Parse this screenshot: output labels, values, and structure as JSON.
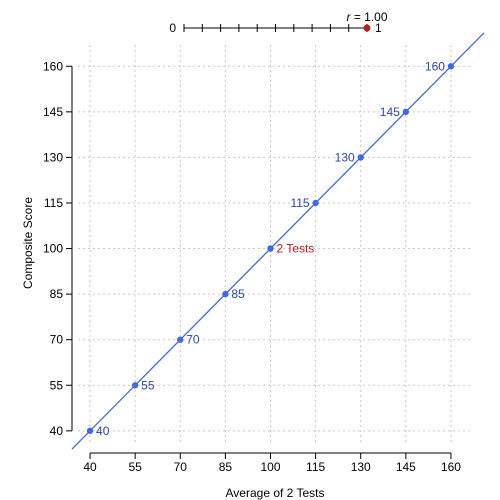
{
  "chart_data": {
    "type": "scatter",
    "xlabel": "Average of 2 Tests",
    "ylabel": "Composite Score",
    "xlim": [
      36,
      167
    ],
    "ylim": [
      36,
      167
    ],
    "x_ticks": [
      40,
      55,
      70,
      85,
      100,
      115,
      130,
      145,
      160
    ],
    "y_ticks": [
      40,
      55,
      70,
      85,
      100,
      115,
      130,
      145,
      160
    ],
    "x_tick_labels": [
      "40",
      "55",
      "70",
      "85",
      "100",
      "115",
      "130",
      "145",
      "160"
    ],
    "y_tick_labels": [
      "40",
      "55",
      "70",
      "85",
      "100",
      "115",
      "130",
      "145",
      "160"
    ],
    "grid": true,
    "points": [
      {
        "x": 40,
        "y": 40,
        "label": "40"
      },
      {
        "x": 55,
        "y": 55,
        "label": "55"
      },
      {
        "x": 70,
        "y": 70,
        "label": "70"
      },
      {
        "x": 85,
        "y": 85,
        "label": "85"
      },
      {
        "x": 100,
        "y": 100,
        "label": "2 Tests"
      },
      {
        "x": 115,
        "y": 115,
        "label": "115"
      },
      {
        "x": 130,
        "y": 130,
        "label": "130"
      },
      {
        "x": 145,
        "y": 145,
        "label": "145"
      },
      {
        "x": 160,
        "y": 160,
        "label": "160"
      }
    ],
    "line": {
      "slope": 1,
      "intercept": 0
    },
    "slider": {
      "min_label": "0",
      "max_label": "1",
      "value": 1.0,
      "r_symbol": "r",
      "value_text": " = 1.00",
      "tick_count": 11
    }
  },
  "colors": {
    "point": "#4169E1",
    "line": "#4A68C8",
    "label": "#2E4A9E",
    "highlight": "#B22222",
    "grid": "#C8C8C8",
    "axis": "#000000",
    "slider_knob": "#B22222"
  }
}
